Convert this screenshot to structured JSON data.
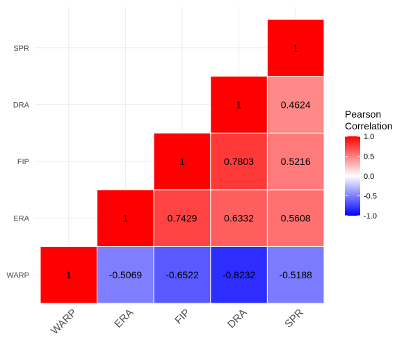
{
  "chart_data": {
    "type": "heatmap",
    "x_categories": [
      "WARP",
      "ERA",
      "FIP",
      "DRA",
      "SPR"
    ],
    "y_categories": [
      "WARP",
      "ERA",
      "FIP",
      "DRA",
      "SPR"
    ],
    "cells": [
      {
        "x": "WARP",
        "y": "WARP",
        "value": 1,
        "label": "1"
      },
      {
        "x": "ERA",
        "y": "WARP",
        "value": -0.5069,
        "label": "-0.5069"
      },
      {
        "x": "FIP",
        "y": "WARP",
        "value": -0.6522,
        "label": "-0.6522"
      },
      {
        "x": "DRA",
        "y": "WARP",
        "value": -0.8232,
        "label": "-0.8232"
      },
      {
        "x": "SPR",
        "y": "WARP",
        "value": -0.5188,
        "label": "-0.5188"
      },
      {
        "x": "ERA",
        "y": "ERA",
        "value": 1,
        "label": "1"
      },
      {
        "x": "FIP",
        "y": "ERA",
        "value": 0.7429,
        "label": "0.7429"
      },
      {
        "x": "DRA",
        "y": "ERA",
        "value": 0.6332,
        "label": "0.6332"
      },
      {
        "x": "SPR",
        "y": "ERA",
        "value": 0.5608,
        "label": "0.5608"
      },
      {
        "x": "FIP",
        "y": "FIP",
        "value": 1,
        "label": "1"
      },
      {
        "x": "DRA",
        "y": "FIP",
        "value": 0.7803,
        "label": "0.7803"
      },
      {
        "x": "SPR",
        "y": "FIP",
        "value": 0.5216,
        "label": "0.5216"
      },
      {
        "x": "DRA",
        "y": "DRA",
        "value": 1,
        "label": "1"
      },
      {
        "x": "SPR",
        "y": "DRA",
        "value": 0.4624,
        "label": "0.4624"
      },
      {
        "x": "SPR",
        "y": "SPR",
        "value": 1,
        "label": "1"
      }
    ],
    "legend": {
      "title_lines": [
        "Pearson",
        "Correlation"
      ],
      "ticks": [
        {
          "value": 1,
          "label": "1.0"
        },
        {
          "value": 0.5,
          "label": "0.5"
        },
        {
          "value": 0,
          "label": "0.0"
        },
        {
          "value": -0.5,
          "label": "-0.5"
        },
        {
          "value": -1,
          "label": "-1.0"
        }
      ],
      "limits": [
        -1,
        1
      ],
      "position": "right"
    },
    "colors": {
      "low": "#0000ff",
      "mid": "#ffffff",
      "high": "#ff0000"
    },
    "grid": true,
    "x_tick_rotation_deg": -45
  }
}
